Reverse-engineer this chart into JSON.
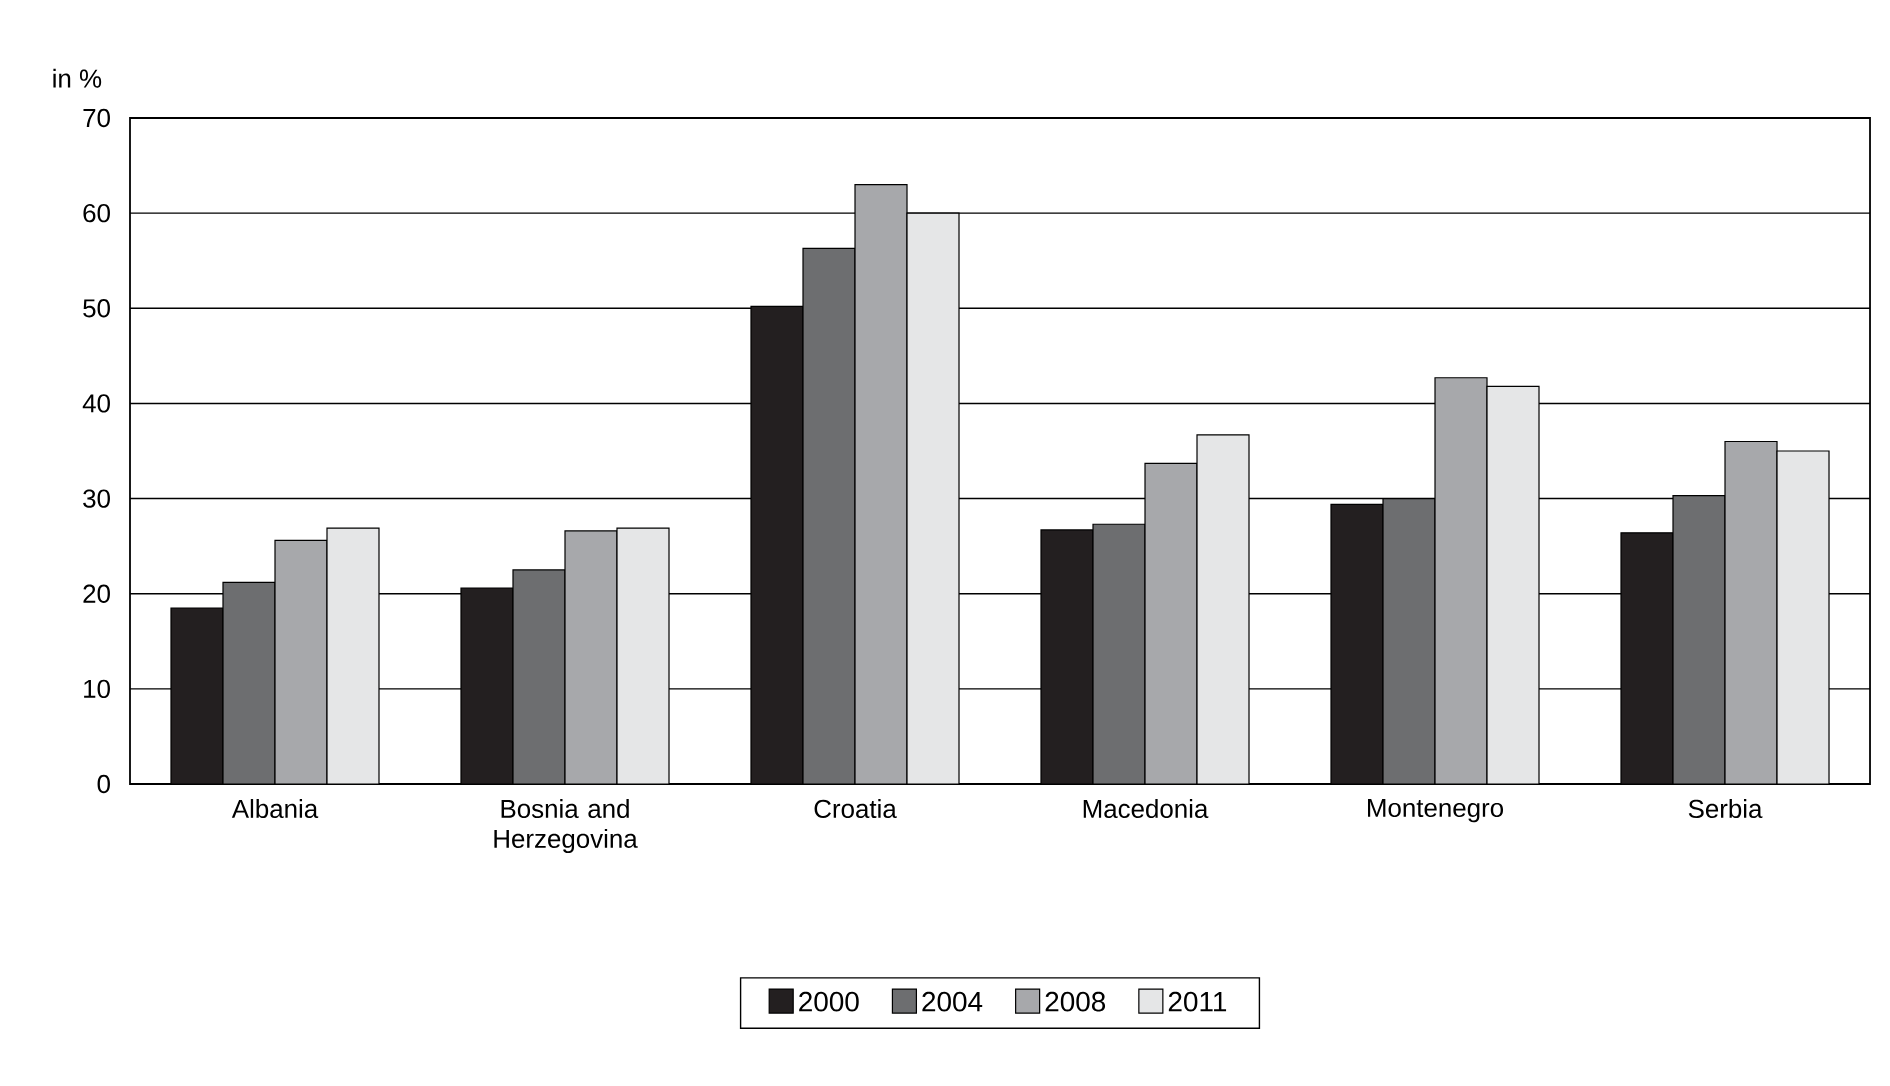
{
  "chart_data": {
    "type": "bar",
    "ylabel": "in %",
    "categories": [
      "Albania",
      "Bosnia and Herzegovina",
      "Croatia",
      "Macedonia",
      "Montenegro",
      "Serbia"
    ],
    "series": [
      {
        "name": "2000",
        "color": "#231f20",
        "values": [
          18.5,
          20.6,
          50.2,
          26.7,
          29.4,
          26.4
        ]
      },
      {
        "name": "2004",
        "color": "#6d6e70",
        "values": [
          21.2,
          22.5,
          56.3,
          27.3,
          30.0,
          30.3
        ]
      },
      {
        "name": "2008",
        "color": "#a7a8ab",
        "values": [
          25.6,
          26.6,
          63.0,
          33.7,
          42.7,
          36.0
        ]
      },
      {
        "name": "2011",
        "color": "#e5e6e7",
        "values": [
          26.9,
          26.9,
          60.0,
          36.7,
          41.8,
          35.0
        ]
      }
    ],
    "ylim": [
      0,
      70
    ],
    "yticks": [
      0,
      10,
      20,
      30,
      40,
      50,
      60,
      70
    ],
    "grid": "y",
    "legend": "bottom"
  }
}
